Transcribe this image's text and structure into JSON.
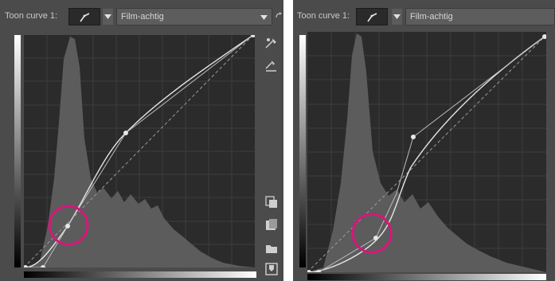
{
  "panels": [
    {
      "label": "Toon curve 1:",
      "curve_type_icon": "film-curve-icon",
      "preset": "Film-achtig",
      "side_tools": [
        "edit-point-icon",
        "edit-point-numeric-icon",
        "copy-icon",
        "paste-icon",
        "open-folder-icon",
        "save-icon"
      ],
      "highlight_color": "#d6177a"
    },
    {
      "label": "Toon curve 1:",
      "curve_type_icon": "film-curve-icon",
      "preset": "Film-achtig",
      "highlight_color": "#d6177a"
    }
  ]
}
